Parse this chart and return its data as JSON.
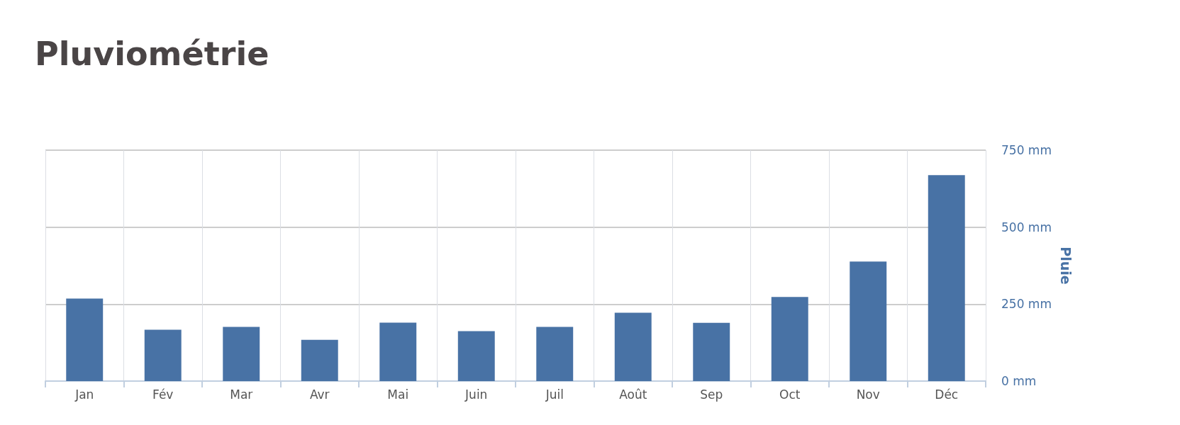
{
  "chart_data": {
    "type": "bar",
    "title": "Pluviométrie",
    "y2label": "Pluie",
    "categories": [
      "Jan",
      "Fév",
      "Mar",
      "Avr",
      "Mai",
      "Juin",
      "Juil",
      "Août",
      "Sep",
      "Oct",
      "Nov",
      "Déc"
    ],
    "series": [
      {
        "color": "#4872a5",
        "axis": "y2",
        "values": [
          268,
          167,
          176,
          134,
          190,
          162,
          176,
          222,
          189,
          273,
          388,
          669
        ]
      }
    ],
    "y2lim": [
      0,
      750
    ],
    "y2ticks": [
      {
        "value": 0,
        "label": "0 mm"
      },
      {
        "value": 250,
        "label": "250 mm"
      },
      {
        "value": 500,
        "label": "500 mm"
      },
      {
        "value": 750,
        "label": "750 mm"
      }
    ],
    "grid": true
  }
}
